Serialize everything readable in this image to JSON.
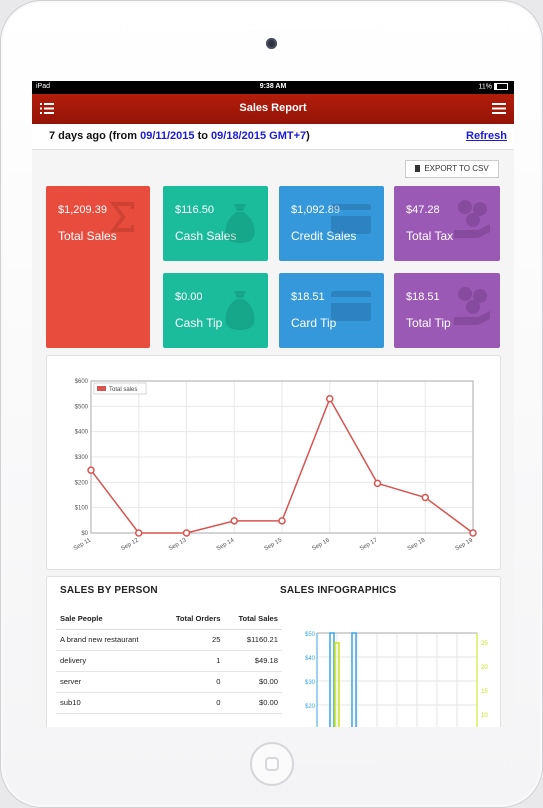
{
  "status_bar": {
    "carrier": "iPad",
    "time": "9:38 AM",
    "battery": "11%"
  },
  "nav": {
    "title": "Sales Report"
  },
  "range": {
    "prefix": "7 days ago (from ",
    "start": "09/11/2015",
    "middle": " to ",
    "end": "09/18/2015 GMT+7",
    "suffix": ")",
    "refresh": "Refresh"
  },
  "export_label": "EXPORT TO CSV",
  "tiles": {
    "total_sales": {
      "amount": "$1,209.39",
      "label": "Total Sales",
      "color": "#e84c3d"
    },
    "cash_sales": {
      "amount": "$116.50",
      "label": "Cash Sales",
      "color": "#1abc9c"
    },
    "credit_sales": {
      "amount": "$1,092.89",
      "label": "Credit Sales",
      "color": "#3598db"
    },
    "total_tax": {
      "amount": "$47.28",
      "label": "Total Tax",
      "color": "#9b59b6"
    },
    "cash_tip": {
      "amount": "$0.00",
      "label": "Cash Tip",
      "color": "#1abc9c"
    },
    "card_tip": {
      "amount": "$18.51",
      "label": "Card Tip",
      "color": "#3598db"
    },
    "total_tip": {
      "amount": "$18.51",
      "label": "Total Tip",
      "color": "#9b59b6"
    }
  },
  "chart_data": {
    "type": "line",
    "legend": "Total sales",
    "legend_position": "top-left",
    "categories": [
      "Sep 11",
      "Sep 12",
      "Sep 13",
      "Sep 14",
      "Sep 15",
      "Sep 16",
      "Sep 17",
      "Sep 18",
      "Sep 19"
    ],
    "series": [
      {
        "name": "Total sales",
        "values": [
          248,
          0,
          0,
          48,
          48,
          530,
          196,
          140,
          0
        ]
      }
    ],
    "yticks": [
      "$600",
      "$500",
      "$400",
      "$300",
      "$200",
      "$100",
      "$0"
    ],
    "ylim": [
      0,
      600
    ],
    "grid": true,
    "color": "#d9534f"
  },
  "sales_by_person": {
    "title": "SALES BY PERSON",
    "columns": [
      "Sale People",
      "Total Orders",
      "Total Sales"
    ],
    "rows": [
      [
        "A brand new restaurant",
        "25",
        "$1160.21"
      ],
      [
        "delivery",
        "1",
        "$49.18"
      ],
      [
        "server",
        "0",
        "$0.00"
      ],
      [
        "sub10",
        "0",
        "$0.00"
      ]
    ]
  },
  "infographics": {
    "title": "SALES INFOGRAPHICS",
    "left_ticks": [
      "$50",
      "$40",
      "$30",
      "$20"
    ],
    "right_ticks": [
      "25",
      "20",
      "15",
      "10"
    ],
    "blue_color": "#3aa5e6",
    "green_color": "#c9e614"
  }
}
